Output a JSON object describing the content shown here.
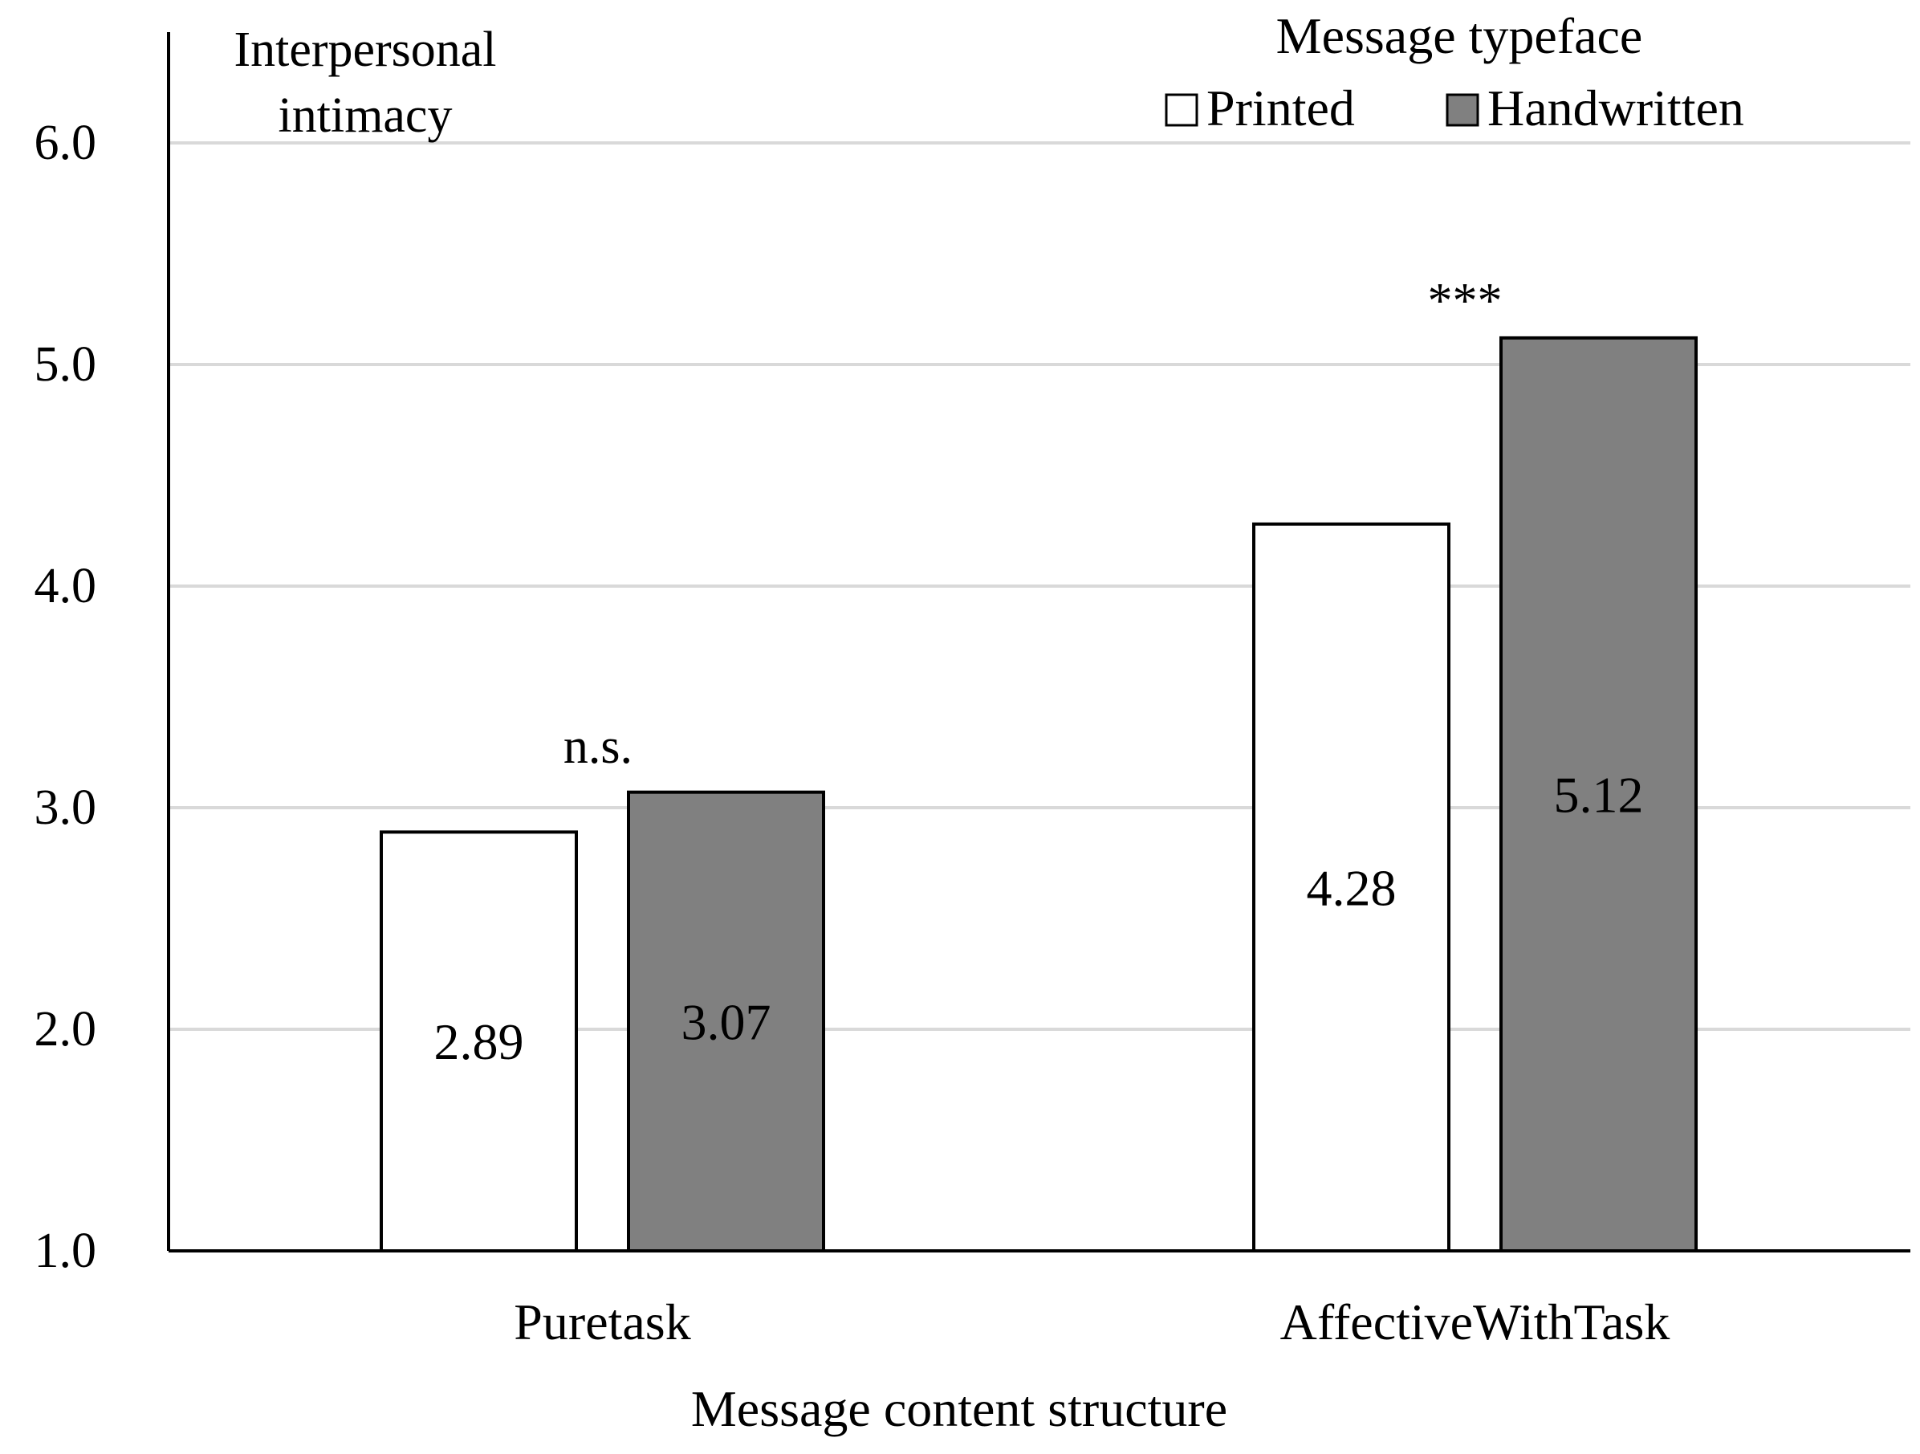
{
  "chart_data": {
    "type": "bar",
    "ylabel": "Interpersonal\nintimacy",
    "xlabel": "Message content structure",
    "legend_title": "Message typeface",
    "legend_placement": "top-right",
    "categories": [
      "Puretask",
      "AffectiveWithTask"
    ],
    "series": [
      {
        "name": "Printed",
        "values": [
          2.89,
          4.28
        ],
        "color": "#ffffff"
      },
      {
        "name": "Handwritten",
        "values": [
          3.07,
          5.12
        ],
        "color": "#808080"
      }
    ],
    "data_labels": [
      [
        "2.89",
        "4.28"
      ],
      [
        "3.07",
        "5.12"
      ]
    ],
    "annotations": [
      "n.s.",
      "***"
    ],
    "ylim": [
      1.0,
      6.0
    ],
    "yticks": [
      "1.0",
      "2.0",
      "3.0",
      "4.0",
      "5.0",
      "6.0"
    ],
    "grid": true
  }
}
